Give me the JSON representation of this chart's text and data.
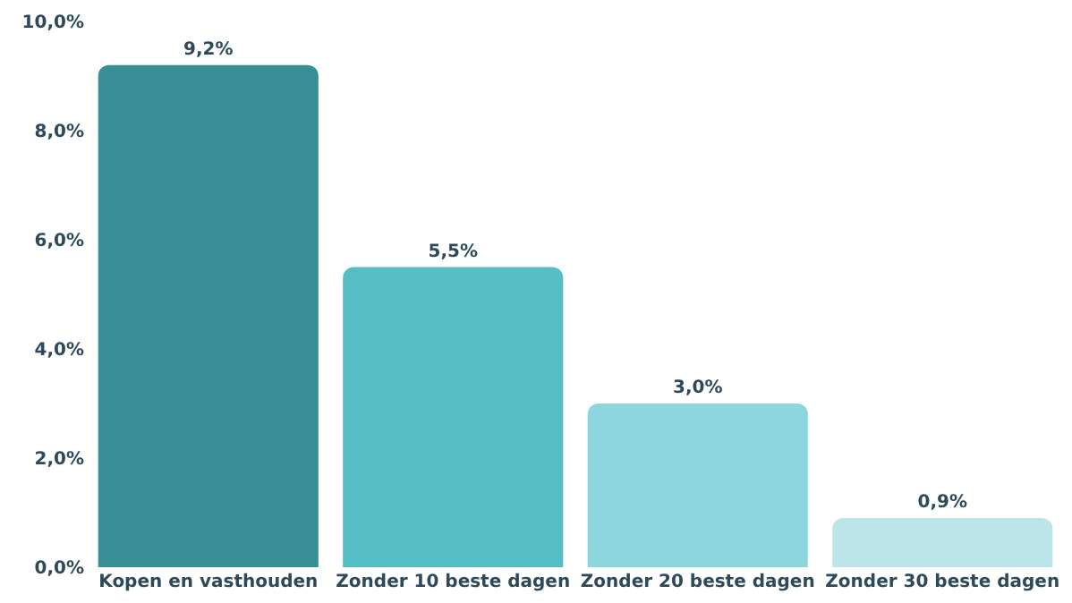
{
  "chart_data": {
    "type": "bar",
    "categories": [
      "Kopen en vasthouden",
      "Zonder 10 beste dagen",
      "Zonder 20 beste dagen",
      "Zonder 30 beste dagen"
    ],
    "values": [
      9.2,
      5.5,
      3.0,
      0.9
    ],
    "colors": [
      "#378f95",
      "#55bdc4",
      "#8cd6de",
      "#bce5ea"
    ],
    "value_labels": [
      "9,2%",
      "5,5%",
      "3,0%",
      "0,9%"
    ],
    "ylim": [
      0,
      10
    ],
    "yticks": [
      {
        "value": 0,
        "label": "0,0%"
      },
      {
        "value": 2,
        "label": "2,0%"
      },
      {
        "value": 4,
        "label": "4,0%"
      },
      {
        "value": 6,
        "label": "6,0%"
      },
      {
        "value": 8,
        "label": "8,0%"
      },
      {
        "value": 10,
        "label": "10,0%"
      }
    ]
  }
}
